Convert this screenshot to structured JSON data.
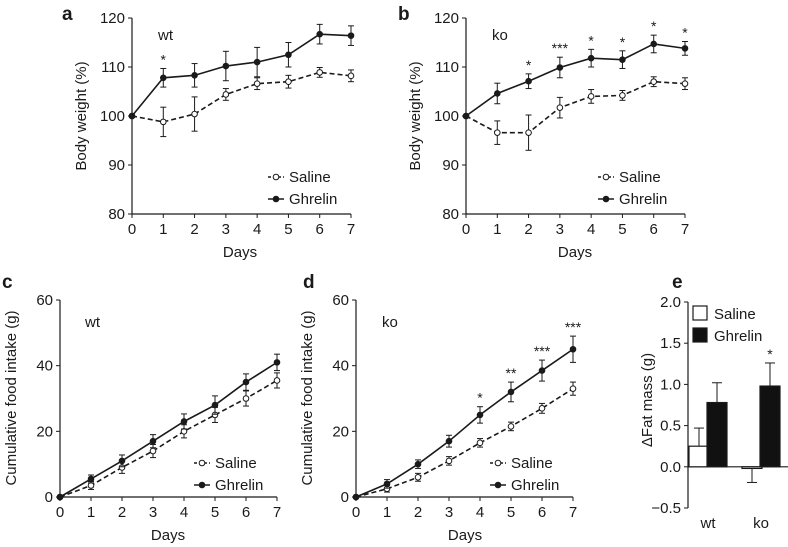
{
  "chart_data": [
    {
      "panel": "a",
      "type": "line",
      "group_label": "wt",
      "xlabel": "Days",
      "ylabel": "Body weight (%)",
      "xlim": [
        0,
        7
      ],
      "ylim": [
        80,
        120
      ],
      "xticks": [
        "0",
        "1",
        "2",
        "3",
        "4",
        "5",
        "6",
        "7"
      ],
      "yticks": [
        "80",
        "90",
        "100",
        "110",
        "120"
      ],
      "x": [
        0,
        1,
        2,
        3,
        4,
        5,
        6,
        7
      ],
      "series": [
        {
          "name": "Saline",
          "style": "dashed-open",
          "values": [
            100,
            98.8,
            100.4,
            104.4,
            106.6,
            107,
            108.9,
            108.2
          ],
          "errors": [
            0,
            3,
            3.5,
            1.2,
            1.2,
            1.3,
            1,
            1.2
          ]
        },
        {
          "name": "Ghrelin",
          "style": "solid-filled",
          "values": [
            100,
            107.8,
            108.3,
            110.2,
            111,
            112.5,
            116.7,
            116.4
          ],
          "errors": [
            0,
            1.9,
            2.4,
            3,
            3,
            2.5,
            2,
            2
          ]
        }
      ],
      "significance": [
        {
          "x": 1,
          "label": "*"
        }
      ]
    },
    {
      "panel": "b",
      "type": "line",
      "group_label": "ko",
      "xlabel": "Days",
      "ylabel": "Body weight (%)",
      "xlim": [
        0,
        7
      ],
      "ylim": [
        80,
        120
      ],
      "xticks": [
        "0",
        "1",
        "2",
        "3",
        "4",
        "5",
        "6",
        "7"
      ],
      "yticks": [
        "80",
        "90",
        "100",
        "110",
        "120"
      ],
      "x": [
        0,
        1,
        2,
        3,
        4,
        5,
        6,
        7
      ],
      "series": [
        {
          "name": "Saline",
          "style": "dashed-open",
          "values": [
            100,
            96.6,
            96.6,
            101.7,
            104,
            104.2,
            107,
            106.6
          ],
          "errors": [
            0,
            2.4,
            3.6,
            2.1,
            1.4,
            1,
            1,
            1.2
          ]
        },
        {
          "name": "Ghrelin",
          "style": "solid-filled",
          "values": [
            100,
            104.6,
            107.1,
            109.9,
            111.8,
            111.5,
            114.7,
            113.8
          ],
          "errors": [
            0,
            2.1,
            1.5,
            2.1,
            1.8,
            1.8,
            1.8,
            1.4
          ]
        }
      ],
      "significance": [
        {
          "x": 2,
          "label": "*"
        },
        {
          "x": 3,
          "label": "***"
        },
        {
          "x": 4,
          "label": "*"
        },
        {
          "x": 5,
          "label": "*"
        },
        {
          "x": 6,
          "label": "*"
        },
        {
          "x": 7,
          "label": "*"
        }
      ]
    },
    {
      "panel": "c",
      "type": "line",
      "group_label": "wt",
      "xlabel": "Days",
      "ylabel": "Cumulative food intake (g)",
      "xlim": [
        0,
        7
      ],
      "ylim": [
        0,
        60
      ],
      "xticks": [
        "0",
        "1",
        "2",
        "3",
        "4",
        "5",
        "6",
        "7"
      ],
      "yticks": [
        "0",
        "20",
        "40",
        "60"
      ],
      "x": [
        0,
        1,
        2,
        3,
        4,
        5,
        6,
        7
      ],
      "series": [
        {
          "name": "Saline",
          "style": "dashed-open",
          "values": [
            0,
            3.5,
            9,
            14,
            20,
            25,
            30,
            35.5
          ],
          "errors": [
            0,
            1.2,
            1.8,
            2,
            2,
            2.3,
            2.3,
            2.3
          ]
        },
        {
          "name": "Ghrelin",
          "style": "solid-filled",
          "values": [
            0,
            5.5,
            11,
            17,
            23,
            28,
            35,
            41
          ],
          "errors": [
            0,
            1.2,
            1.8,
            2,
            2.3,
            2.8,
            2.5,
            2.5
          ]
        }
      ],
      "significance": []
    },
    {
      "panel": "d",
      "type": "line",
      "group_label": "ko",
      "xlabel": "Days",
      "ylabel": "Cumulative food intake (g)",
      "xlim": [
        0,
        7
      ],
      "ylim": [
        0,
        60
      ],
      "xticks": [
        "0",
        "1",
        "2",
        "3",
        "4",
        "5",
        "6",
        "7"
      ],
      "yticks": [
        "0",
        "20",
        "40",
        "60"
      ],
      "x": [
        0,
        1,
        2,
        3,
        4,
        5,
        6,
        7
      ],
      "series": [
        {
          "name": "Saline",
          "style": "dashed-open",
          "values": [
            0,
            2.5,
            6,
            11,
            16.5,
            21.5,
            27,
            33
          ],
          "errors": [
            0,
            1,
            1.2,
            1.3,
            1.3,
            1.3,
            1.5,
            2
          ]
        },
        {
          "name": "Ghrelin",
          "style": "solid-filled",
          "values": [
            0,
            4,
            10,
            17,
            25,
            32,
            38.5,
            45
          ],
          "errors": [
            0,
            1.3,
            1.3,
            1.8,
            2.5,
            3,
            3.2,
            4
          ]
        }
      ],
      "significance": [
        {
          "x": 4,
          "label": "*"
        },
        {
          "x": 5,
          "label": "**"
        },
        {
          "x": 6,
          "label": "***"
        },
        {
          "x": 7,
          "label": "***"
        }
      ]
    },
    {
      "panel": "e",
      "type": "bar",
      "xlabel": "",
      "ylabel": "ΔFat mass (g)",
      "ylim": [
        -0.5,
        2.0
      ],
      "yticks": [
        "−0.5",
        "0.0",
        "0.5",
        "1.0",
        "1.5",
        "2.0"
      ],
      "categories": [
        "wt",
        "ko"
      ],
      "series": [
        {
          "name": "Saline",
          "color": "#ffffff",
          "values": [
            0.25,
            -0.02
          ],
          "errors": [
            0.22,
            0.17
          ]
        },
        {
          "name": "Ghrelin",
          "color": "#111111",
          "values": [
            0.78,
            0.98
          ],
          "errors": [
            0.24,
            0.28
          ]
        }
      ],
      "significance": [
        {
          "category": "ko",
          "series": "Ghrelin",
          "label": "*"
        }
      ]
    }
  ]
}
